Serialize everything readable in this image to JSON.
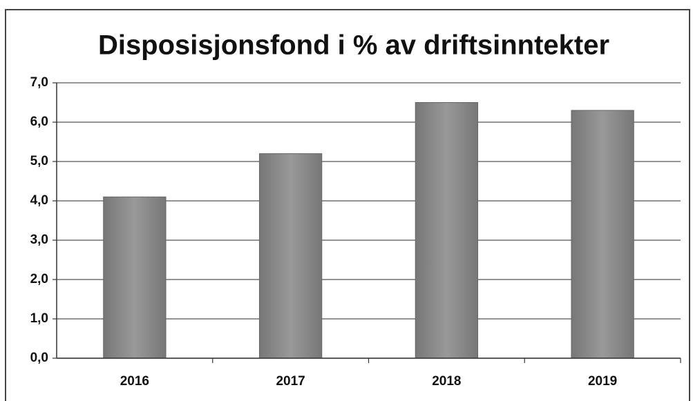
{
  "chart_data": {
    "type": "bar",
    "title": "Disposisjonsfond i % av driftsinntekter",
    "categories": [
      "2016",
      "2017",
      "2018",
      "2019"
    ],
    "values": [
      4.1,
      5.2,
      6.5,
      6.3
    ],
    "color": "#8a8a8a",
    "ylim": [
      0,
      7
    ],
    "yticks": [
      {
        "value": 0,
        "label": "0,0"
      },
      {
        "value": 1,
        "label": "1,0"
      },
      {
        "value": 2,
        "label": "2,0"
      },
      {
        "value": 3,
        "label": "3,0"
      },
      {
        "value": 4,
        "label": "4,0"
      },
      {
        "value": 5,
        "label": "5,0"
      },
      {
        "value": 6,
        "label": "6,0"
      },
      {
        "value": 7,
        "label": "7,0"
      }
    ],
    "grid": true
  }
}
